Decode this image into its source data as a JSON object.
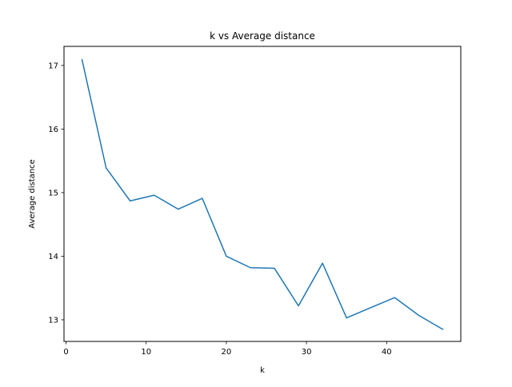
{
  "chart_data": {
    "type": "line",
    "title": "k vs Average distance",
    "xlabel": "k",
    "ylabel": "Average distance",
    "xlim": [
      -0.25,
      49.25
    ],
    "ylim": [
      12.66,
      17.3
    ],
    "xticks": [
      0,
      10,
      20,
      30,
      40
    ],
    "yticks": [
      13,
      14,
      15,
      16,
      17
    ],
    "grid": false,
    "legend": "none",
    "series": [
      {
        "color": "#1f77b4",
        "x": [
          2,
          5,
          8,
          11,
          14,
          17,
          20,
          23,
          26,
          29,
          32,
          35,
          38,
          41,
          44,
          47
        ],
        "y": [
          17.09,
          15.39,
          14.87,
          14.96,
          14.74,
          14.91,
          14.0,
          13.82,
          13.81,
          13.22,
          13.89,
          13.03,
          13.19,
          13.35,
          13.07,
          12.85
        ]
      }
    ]
  }
}
